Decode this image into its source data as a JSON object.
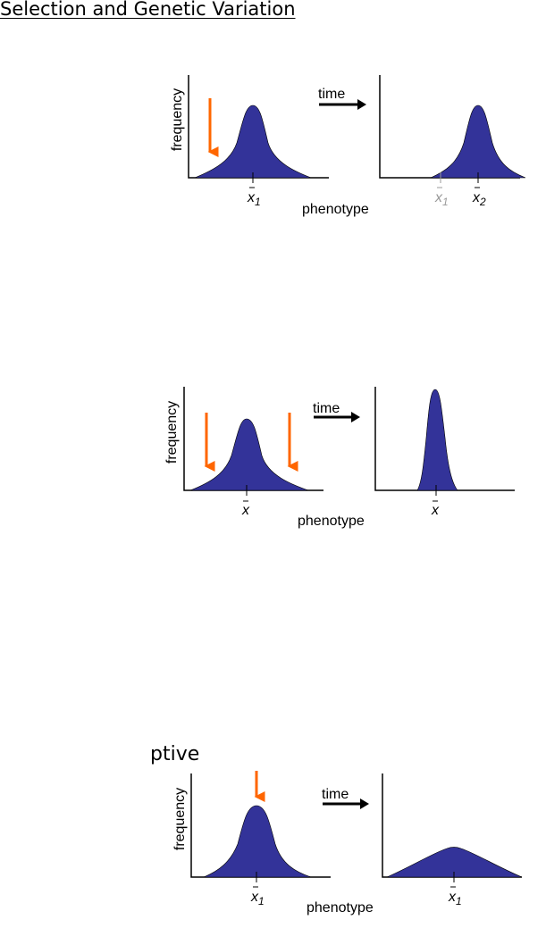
{
  "page": {
    "title": "Selection and Genetic Variation"
  },
  "diagrams": [
    {
      "caption": "",
      "ylabel": "frequency",
      "xlabel": "phenotype",
      "time_label": "time",
      "before_mean_label": "x",
      "before_mean_sub": "1",
      "after_mean_label": "x",
      "after_mean_sub": "2",
      "previous_mean_label": "x",
      "previous_mean_sub": "1"
    },
    {
      "caption": "",
      "ylabel": "frequency",
      "xlabel": "phenotype",
      "time_label": "time",
      "before_mean_label": "x",
      "after_mean_label": "x"
    },
    {
      "caption": "ptive",
      "ylabel": "frequency",
      "xlabel": "phenotype",
      "time_label": "time",
      "before_mean_label": "x",
      "before_mean_sub": "1",
      "after_mean_label": "x",
      "after_mean_sub": "1"
    }
  ],
  "colors": {
    "curve_fill": "#333399",
    "selection_arrow": "#ff6600",
    "axis": "#000000",
    "previous_mean": "#999999"
  }
}
